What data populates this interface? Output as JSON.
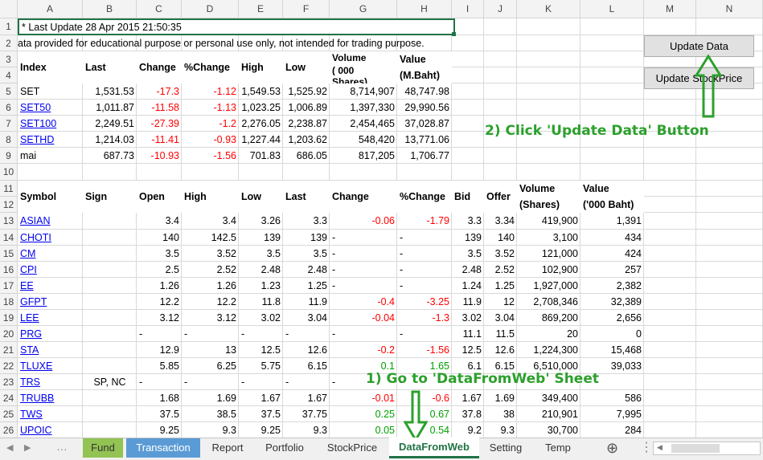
{
  "columns": [
    "A",
    "B",
    "C",
    "D",
    "E",
    "F",
    "G",
    "H",
    "I",
    "J",
    "K",
    "L",
    "M",
    "N"
  ],
  "rows": [
    "1",
    "2",
    "3",
    "4",
    "5",
    "6",
    "7",
    "8",
    "9",
    "10",
    "11",
    "12",
    "13",
    "14",
    "15",
    "16",
    "17",
    "18",
    "19",
    "20",
    "21",
    "22",
    "23",
    "24",
    "25",
    "26"
  ],
  "header_block": {
    "last_update": "* Last Update 28 Apr 2015 21:50:35",
    "disclaimer": "ata provided for educational purpose or personal use only, not intended for trading purpose."
  },
  "index_table": {
    "headers": [
      "Index",
      "Last",
      "Change",
      "%Change",
      "High",
      "Low",
      "Volume\n( 000\nShares)",
      "Value\n(M.Baht)"
    ],
    "vol_label_1": "Volume",
    "vol_label_2": "( 000",
    "vol_label_3": "Shares)",
    "val_label_1": "Value",
    "val_label_2": "(M.Baht)",
    "rows": [
      {
        "name": "SET",
        "link": false,
        "last": "1,531.53",
        "change": "-17.3",
        "pct": "-1.12",
        "high": "1,549.53",
        "low": "1,525.92",
        "volume": "8,714,907",
        "value": "48,747.98"
      },
      {
        "name": "SET50",
        "link": true,
        "last": "1,011.87",
        "change": "-11.58",
        "pct": "-1.13",
        "high": "1,023.25",
        "low": "1,006.89",
        "volume": "1,397,330",
        "value": "29,990.56"
      },
      {
        "name": "SET100",
        "link": true,
        "last": "2,249.51",
        "change": "-27.39",
        "pct": "-1.2",
        "high": "2,276.05",
        "low": "2,238.87",
        "volume": "2,454,465",
        "value": "37,028.87"
      },
      {
        "name": "SETHD",
        "link": true,
        "last": "1,214.03",
        "change": "-11.41",
        "pct": "-0.93",
        "high": "1,227.44",
        "low": "1,203.62",
        "volume": "548,420",
        "value": "13,771.06"
      },
      {
        "name": "mai",
        "link": false,
        "last": "687.73",
        "change": "-10.93",
        "pct": "-1.56",
        "high": "701.83",
        "low": "686.05",
        "volume": "817,205",
        "value": "1,706.77"
      }
    ]
  },
  "stock_table": {
    "h_symbol": "Symbol",
    "h_sign": "Sign",
    "h_open": "Open",
    "h_high": "High",
    "h_low": "Low",
    "h_last": "Last",
    "h_change": "Change",
    "h_pct": "%Change",
    "h_bid": "Bid",
    "h_offer": "Offer",
    "h_vol1": "Volume",
    "h_vol2": "(Shares)",
    "h_val1": "Value",
    "h_val2": "('000 Baht)",
    "rows": [
      {
        "sym": "ASIAN",
        "sign": "",
        "open": "3.4",
        "high": "3.4",
        "low": "3.26",
        "last": "3.3",
        "change": "-0.06",
        "pct": "-1.79",
        "color": "red",
        "bid": "3.3",
        "offer": "3.34",
        "vol": "419,900",
        "val": "1,391"
      },
      {
        "sym": "CHOTI",
        "sign": "",
        "open": "140",
        "high": "142.5",
        "low": "139",
        "last": "139",
        "change": "-",
        "pct": "-",
        "color": "",
        "bid": "139",
        "offer": "140",
        "vol": "3,100",
        "val": "434"
      },
      {
        "sym": "CM",
        "sign": "",
        "open": "3.5",
        "high": "3.52",
        "low": "3.5",
        "last": "3.5",
        "change": "-",
        "pct": "-",
        "color": "",
        "bid": "3.5",
        "offer": "3.52",
        "vol": "121,000",
        "val": "424"
      },
      {
        "sym": "CPI",
        "sign": "",
        "open": "2.5",
        "high": "2.52",
        "low": "2.48",
        "last": "2.48",
        "change": "-",
        "pct": "-",
        "color": "",
        "bid": "2.48",
        "offer": "2.52",
        "vol": "102,900",
        "val": "257"
      },
      {
        "sym": "EE",
        "sign": "",
        "open": "1.26",
        "high": "1.26",
        "low": "1.23",
        "last": "1.25",
        "change": "-",
        "pct": "-",
        "color": "",
        "bid": "1.24",
        "offer": "1.25",
        "vol": "1,927,000",
        "val": "2,382"
      },
      {
        "sym": "GFPT",
        "sign": "",
        "open": "12.2",
        "high": "12.2",
        "low": "11.8",
        "last": "11.9",
        "change": "-0.4",
        "pct": "-3.25",
        "color": "red",
        "bid": "11.9",
        "offer": "12",
        "vol": "2,708,346",
        "val": "32,389"
      },
      {
        "sym": "LEE",
        "sign": "",
        "open": "3.12",
        "high": "3.12",
        "low": "3.02",
        "last": "3.04",
        "change": "-0.04",
        "pct": "-1.3",
        "color": "red",
        "bid": "3.02",
        "offer": "3.04",
        "vol": "869,200",
        "val": "2,656"
      },
      {
        "sym": "PRG",
        "sign": "",
        "open": "-",
        "high": "-",
        "low": "-",
        "last": "-",
        "change": "-",
        "pct": "-",
        "color": "",
        "bid": "11.1",
        "offer": "11.5",
        "vol": "20",
        "val": "0"
      },
      {
        "sym": "STA",
        "sign": "",
        "open": "12.9",
        "high": "13",
        "low": "12.5",
        "last": "12.6",
        "change": "-0.2",
        "pct": "-1.56",
        "color": "red",
        "bid": "12.5",
        "offer": "12.6",
        "vol": "1,224,300",
        "val": "15,468"
      },
      {
        "sym": "TLUXE",
        "sign": "",
        "open": "5.85",
        "high": "6.25",
        "low": "5.75",
        "last": "6.15",
        "change": "0.1",
        "pct": "1.65",
        "color": "green",
        "bid": "6.1",
        "offer": "6.15",
        "vol": "6,510,000",
        "val": "39,033"
      },
      {
        "sym": "TRS",
        "sign": "SP, NC",
        "open": "-",
        "high": "-",
        "low": "-",
        "last": "-",
        "change": "-",
        "pct": "-",
        "color": "",
        "bid": "",
        "offer": "",
        "vol": "",
        "val": ""
      },
      {
        "sym": "TRUBB",
        "sign": "",
        "open": "1.68",
        "high": "1.69",
        "low": "1.67",
        "last": "1.67",
        "change": "-0.01",
        "pct": "-0.6",
        "color": "red",
        "bid": "1.67",
        "offer": "1.69",
        "vol": "349,400",
        "val": "586"
      },
      {
        "sym": "TWS",
        "sign": "",
        "open": "37.5",
        "high": "38.5",
        "low": "37.5",
        "last": "37.75",
        "change": "0.25",
        "pct": "0.67",
        "color": "green",
        "bid": "37.8",
        "offer": "38",
        "vol": "210,901",
        "val": "7,995"
      },
      {
        "sym": "UPOIC",
        "sign": "",
        "open": "9.25",
        "high": "9.3",
        "low": "9.25",
        "last": "9.3",
        "change": "0.05",
        "pct": "0.54",
        "color": "green",
        "bid": "9.2",
        "offer": "9.3",
        "vol": "30,700",
        "val": "284"
      }
    ]
  },
  "buttons": {
    "update_data": "Update Data",
    "update_stock": "Update StockPrice"
  },
  "annotations": {
    "step1": "1) Go to 'DataFromWeb' Sheet",
    "step2": "2) Click 'Update Data' Button"
  },
  "tabs": [
    {
      "label": "Fund",
      "style": "green"
    },
    {
      "label": "Transaction",
      "style": "blue"
    },
    {
      "label": "Report",
      "style": ""
    },
    {
      "label": "Portfolio",
      "style": ""
    },
    {
      "label": "StockPrice",
      "style": ""
    },
    {
      "label": "DataFromWeb",
      "style": "active"
    },
    {
      "label": "Setting",
      "style": ""
    },
    {
      "label": "Temp",
      "style": ""
    }
  ],
  "add_sheet_symbol": "⊕",
  "colors": {
    "red": "#ff0000",
    "green": "#00a000",
    "link": "#0000ee",
    "annotation": "#2ca02c",
    "tab_green": "#92c353",
    "tab_blue": "#5b9bd5"
  }
}
